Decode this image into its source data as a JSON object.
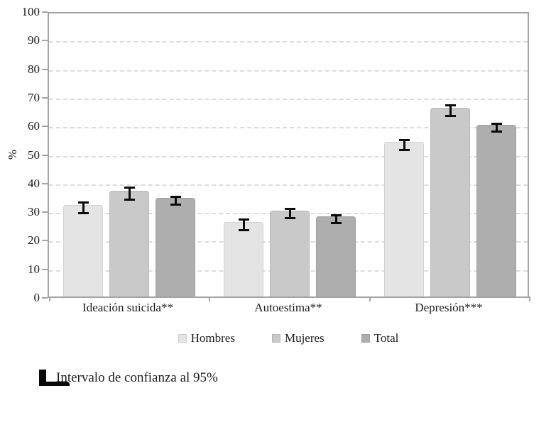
{
  "chart_data": {
    "type": "bar",
    "title": "",
    "xlabel": "",
    "ylabel": "%",
    "ylim": [
      0,
      100
    ],
    "ytick_step": 10,
    "yticks": [
      0,
      10,
      20,
      30,
      40,
      50,
      60,
      70,
      80,
      90,
      100
    ],
    "grid": "horizontal-dashed",
    "legend_position": "bottom-center",
    "categories": [
      "Ideación suicida**",
      "Autoestima**",
      "Depresión***"
    ],
    "series": [
      {
        "name": "Hombres",
        "color": "#e4e4e4",
        "values": [
          32,
          26,
          54
        ],
        "ci": [
          2.3,
          2.3,
          2.2
        ]
      },
      {
        "name": "Mujeres",
        "color": "#c9c9c9",
        "values": [
          37,
          30,
          66
        ],
        "ci": [
          2.4,
          1.9,
          2.2
        ]
      },
      {
        "name": "Total",
        "color": "#aeaeae",
        "values": [
          34.5,
          28,
          60
        ],
        "ci": [
          1.7,
          1.7,
          1.8
        ]
      }
    ],
    "annotation": {
      "icon": "confidence-interval-icon",
      "label": "Intervalo de confianza al 95%"
    },
    "colors": {
      "grid": "#dcdcdc",
      "plot_border": "#a3a3a3",
      "error_bar": "#0a0a0a",
      "text": "#1c1c1c",
      "background": "#ffffff"
    }
  }
}
